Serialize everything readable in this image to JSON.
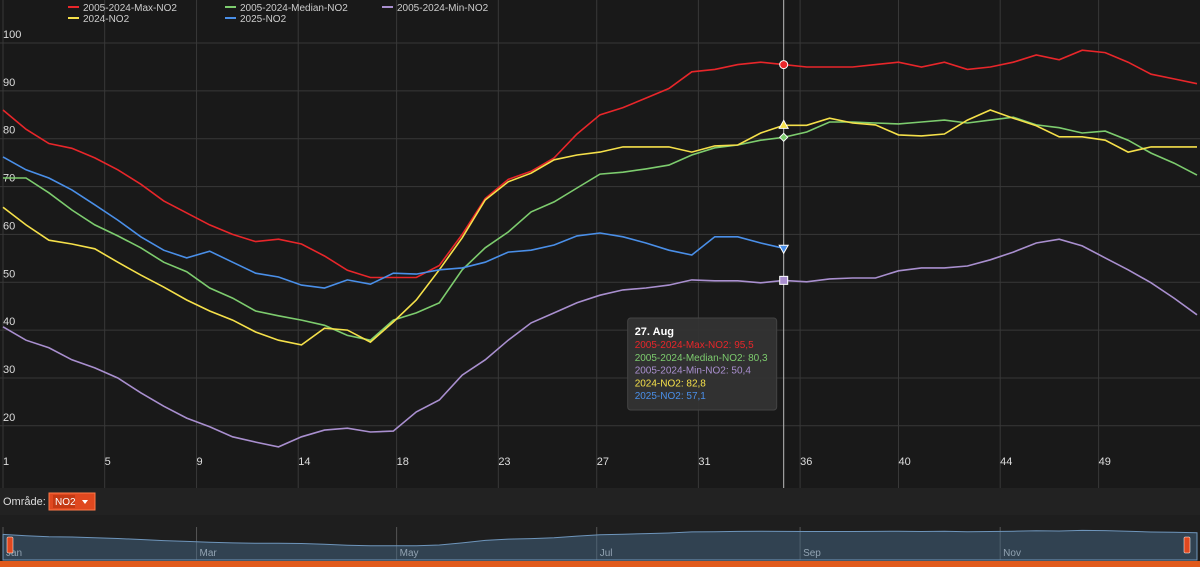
{
  "chart_data": {
    "type": "line",
    "x": [
      1,
      8,
      15,
      22,
      29,
      36,
      43,
      50,
      57,
      64,
      71,
      78,
      85,
      92,
      99,
      106,
      113,
      120,
      127,
      134,
      141,
      148,
      155,
      162,
      169,
      176,
      183,
      190,
      197,
      204,
      211,
      218,
      225,
      232,
      239,
      246,
      253,
      260,
      267,
      274,
      281,
      288,
      295,
      302,
      309,
      316,
      323,
      330,
      337,
      344,
      351,
      358,
      365
    ],
    "xlim": [
      1,
      365
    ],
    "xticks": [
      {
        "value": 1,
        "label": "1"
      },
      {
        "value": 32,
        "label": "5"
      },
      {
        "value": 60,
        "label": "9"
      },
      {
        "value": 91,
        "label": "14"
      },
      {
        "value": 121,
        "label": "18"
      },
      {
        "value": 152,
        "label": "23"
      },
      {
        "value": 182,
        "label": "27"
      },
      {
        "value": 213,
        "label": "31"
      },
      {
        "value": 244,
        "label": "36"
      },
      {
        "value": 274,
        "label": "40"
      },
      {
        "value": 305,
        "label": "44"
      },
      {
        "value": 335,
        "label": "49"
      }
    ],
    "ylim": [
      7,
      109
    ],
    "yticks": [
      20,
      30,
      40,
      50,
      60,
      70,
      80,
      90,
      100
    ],
    "grid": true,
    "series": [
      {
        "name": "2005-2024-Max-NO2",
        "color": "#e8262a",
        "values": [
          86,
          82,
          79,
          78,
          76,
          73.5,
          70.5,
          67,
          64.5,
          62,
          60,
          58.5,
          59,
          58,
          55.5,
          52.5,
          51,
          51,
          51,
          53.5,
          60,
          67.5,
          71.5,
          73.2,
          76,
          81,
          85,
          86.5,
          88.5,
          90.5,
          94,
          94.5,
          95.5,
          96,
          95.5,
          95,
          95,
          95,
          95.5,
          96,
          95,
          96,
          94.5,
          95,
          96,
          97.5,
          96.5,
          98.5,
          98,
          96,
          93.5,
          92.5,
          91.5
        ]
      },
      {
        "name": "2005-2024-Median-NO2",
        "color": "#7dcc6e",
        "values": [
          71.8,
          71.8,
          68.7,
          65.1,
          62,
          59.7,
          57.2,
          54.2,
          52.2,
          48.8,
          46.7,
          44,
          43,
          42.1,
          41,
          38.9,
          37.9,
          42.1,
          43.6,
          45.7,
          52.6,
          57.2,
          60.5,
          64.7,
          66.8,
          69.7,
          72.6,
          73,
          73.7,
          74.5,
          76.6,
          78.1,
          78.7,
          79.7,
          80.3,
          81.4,
          83.5,
          83.5,
          83.3,
          83.1,
          83.5,
          83.9,
          83.3,
          83.9,
          84.5,
          82.9,
          82.3,
          81.2,
          81.6,
          79.7,
          77,
          74.9,
          72.4
        ]
      },
      {
        "name": "2005-2024-Min-NO2",
        "color": "#a98fcf",
        "values": [
          40.7,
          37.9,
          36.3,
          33.8,
          32.1,
          30,
          26.9,
          24.1,
          21.6,
          19.8,
          17.7,
          16.6,
          15.6,
          17.7,
          19.1,
          19.5,
          18.7,
          18.9,
          22.9,
          25.4,
          30.6,
          33.8,
          37.9,
          41.5,
          43.6,
          45.7,
          47.3,
          48.4,
          48.8,
          49.4,
          50.5,
          50.3,
          50.3,
          49.9,
          50.4,
          50.1,
          50.7,
          50.9,
          50.9,
          52.4,
          53,
          53,
          53.4,
          54.7,
          56.3,
          58.2,
          59,
          57.6,
          55.1,
          52.6,
          49.9,
          46.7,
          43.2
        ]
      },
      {
        "name": "2024-NO2",
        "color": "#f5e04a",
        "values": [
          65.7,
          62,
          58.8,
          58,
          57,
          54.2,
          51.5,
          49,
          46.3,
          44,
          42.1,
          39.6,
          37.9,
          36.9,
          40.4,
          40,
          37.5,
          41.7,
          46.3,
          52.6,
          59.3,
          67.2,
          71,
          72.8,
          75.6,
          76.6,
          77.2,
          78.3,
          78.3,
          78.3,
          77.2,
          78.5,
          78.7,
          81.2,
          82.8,
          82.8,
          84.3,
          83.3,
          82.9,
          80.8,
          80.6,
          81,
          83.9,
          86,
          84.3,
          82.7,
          80.4,
          80.4,
          79.7,
          77.2,
          78.3,
          78.3,
          78.3
        ]
      },
      {
        "name": "2025-NO2",
        "color": "#4a8fe8",
        "values": [
          76.2,
          73.5,
          71.8,
          69.3,
          66.2,
          63,
          59.5,
          56.7,
          55.1,
          56.5,
          54.2,
          51.9,
          51.1,
          49.4,
          48.8,
          50.5,
          49.6,
          51.9,
          51.7,
          52.6,
          53,
          54.2,
          56.3,
          56.7,
          57.8,
          59.7,
          60.3,
          59.5,
          58.2,
          56.7,
          55.7,
          59.5,
          59.5,
          58.2,
          57.1,
          null,
          null,
          null,
          null,
          null,
          null,
          null,
          null,
          null,
          null,
          null,
          null,
          null,
          null,
          null,
          null,
          null,
          null
        ]
      }
    ],
    "tooltip": {
      "title": "27. Aug",
      "value_labels": [
        "95,5",
        "80,3",
        "50,4",
        "82,8",
        "57,1"
      ]
    }
  },
  "controls": {
    "label": "Område:",
    "selected": "NO2"
  },
  "navigator": {
    "xticks": [
      {
        "value": 1,
        "label": "Jan"
      },
      {
        "value": 60,
        "label": "Mar"
      },
      {
        "value": 121,
        "label": "May"
      },
      {
        "value": 182,
        "label": "Jul"
      },
      {
        "value": 244,
        "label": "Sep"
      },
      {
        "value": 305,
        "label": "Nov"
      }
    ]
  }
}
